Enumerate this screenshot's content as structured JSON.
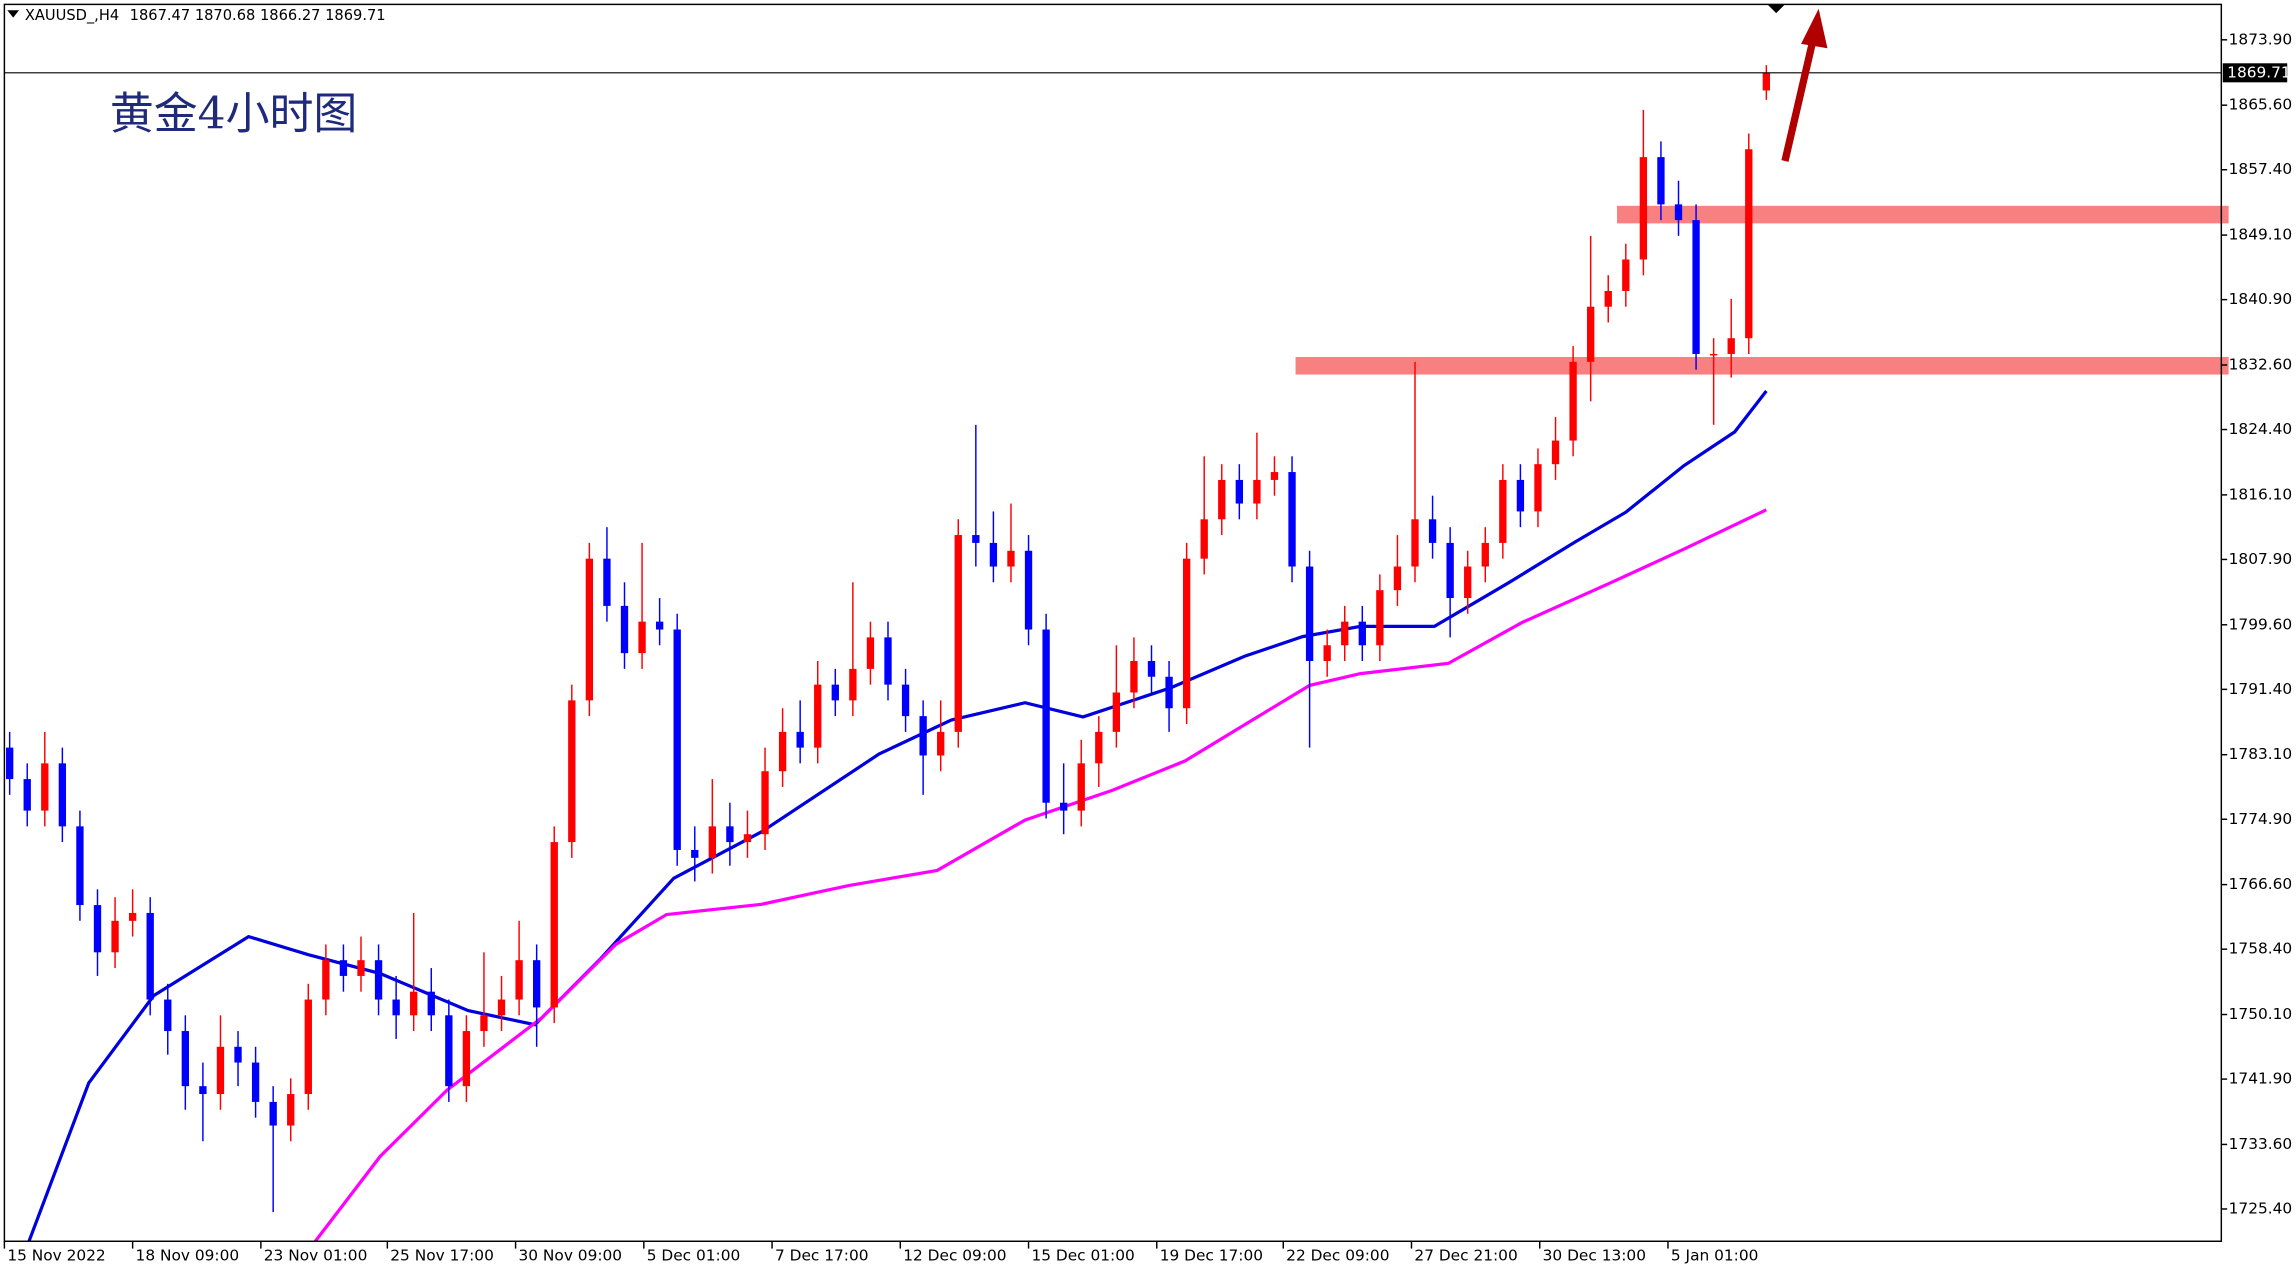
{
  "chart_data": {
    "type": "candlestick",
    "symbol": "XAUUSD_,H4",
    "title": "黄金4小时图",
    "up_color": "#ff0000",
    "down_color": "#0000ff",
    "open": [
      1784,
      1780,
      1776,
      1782,
      1774,
      1764,
      1758,
      1762,
      1763,
      1752,
      1748,
      1741,
      1740,
      1746,
      1744,
      1739,
      1736,
      1740,
      1752,
      1757,
      1755,
      1757,
      1752,
      1750,
      1753,
      1750,
      1741,
      1748,
      1750,
      1752,
      1757,
      1751,
      1772,
      1790,
      1808,
      1802,
      1796,
      1800,
      1799,
      1771,
      1770,
      1774,
      1772,
      1773,
      1781,
      1786,
      1784,
      1792,
      1790,
      1794,
      1798,
      1792,
      1788,
      1783,
      1786,
      1811,
      1810,
      1807,
      1809,
      1799,
      1777,
      1776,
      1782,
      1786,
      1791,
      1795,
      1793,
      1789,
      1808,
      1813,
      1818,
      1815,
      1818,
      1819,
      1807,
      1795,
      1797,
      1800,
      1797,
      1804,
      1807,
      1813,
      1810,
      1803,
      1807,
      1810,
      1818,
      1814,
      1820,
      1823,
      1833,
      1840,
      1842,
      1846,
      1859,
      1853,
      1851,
      1834,
      1834,
      1836,
      1867.47
    ],
    "high": [
      1786,
      1782,
      1786,
      1784,
      1776,
      1766,
      1765,
      1766,
      1765,
      1754,
      1750,
      1744,
      1750,
      1748,
      1746,
      1741,
      1742,
      1754,
      1759,
      1759,
      1760,
      1759,
      1755,
      1763,
      1756,
      1752,
      1750,
      1758,
      1755,
      1762,
      1759,
      1774,
      1792,
      1810,
      1812,
      1805,
      1810,
      1803,
      1801,
      1774,
      1780,
      1777,
      1776,
      1784,
      1789,
      1790,
      1795,
      1794,
      1805,
      1800,
      1800,
      1794,
      1790,
      1790,
      1813,
      1825,
      1814,
      1815,
      1811,
      1801,
      1782,
      1785,
      1788,
      1797,
      1798,
      1797,
      1795,
      1810,
      1821,
      1820,
      1820,
      1824,
      1821,
      1821,
      1809,
      1799,
      1802,
      1802,
      1806,
      1811,
      1833,
      1816,
      1812,
      1809,
      1812,
      1820,
      1820,
      1822,
      1826,
      1835,
      1849,
      1844,
      1848,
      1865,
      1861,
      1856,
      1853,
      1836,
      1841,
      1862,
      1870.68
    ],
    "low": [
      1778,
      1774,
      1774,
      1772,
      1762,
      1755,
      1756,
      1760,
      1750,
      1745,
      1738,
      1734,
      1738,
      1741,
      1737,
      1725,
      1734,
      1738,
      1750,
      1753,
      1753,
      1750,
      1747,
      1748,
      1748,
      1739,
      1739,
      1746,
      1748,
      1750,
      1746,
      1749,
      1770,
      1788,
      1800,
      1794,
      1794,
      1797,
      1769,
      1767,
      1768,
      1769,
      1770,
      1771,
      1779,
      1782,
      1782,
      1788,
      1788,
      1792,
      1790,
      1786,
      1778,
      1781,
      1784,
      1807,
      1805,
      1805,
      1797,
      1775,
      1773,
      1774,
      1779,
      1784,
      1789,
      1791,
      1786,
      1787,
      1806,
      1811,
      1813,
      1813,
      1816,
      1805,
      1784,
      1793,
      1795,
      1795,
      1795,
      1802,
      1805,
      1808,
      1798,
      1801,
      1805,
      1808,
      1812,
      1812,
      1818,
      1821,
      1828,
      1838,
      1840,
      1844,
      1851,
      1849,
      1832,
      1825,
      1831,
      1834,
      1866.27
    ],
    "close": [
      1780,
      1776,
      1782,
      1774,
      1764,
      1758,
      1762,
      1763,
      1752,
      1748,
      1741,
      1740,
      1746,
      1744,
      1739,
      1736,
      1740,
      1752,
      1757,
      1755,
      1757,
      1752,
      1750,
      1753,
      1750,
      1741,
      1748,
      1750,
      1752,
      1757,
      1751,
      1772,
      1790,
      1808,
      1802,
      1796,
      1800,
      1799,
      1771,
      1770,
      1774,
      1772,
      1773,
      1781,
      1786,
      1784,
      1792,
      1790,
      1794,
      1798,
      1792,
      1788,
      1783,
      1786,
      1811,
      1810,
      1807,
      1809,
      1799,
      1777,
      1776,
      1782,
      1786,
      1791,
      1795,
      1793,
      1789,
      1808,
      1813,
      1818,
      1815,
      1818,
      1819,
      1807,
      1795,
      1797,
      1800,
      1797,
      1804,
      1807,
      1813,
      1810,
      1803,
      1807,
      1810,
      1818,
      1814,
      1820,
      1823,
      1833,
      1840,
      1842,
      1846,
      1859,
      1853,
      1851,
      1834,
      1834,
      1836,
      1860,
      1869.71
    ],
    "series": [
      {
        "color": "#0000dd",
        "x": [
          1.1,
          4.5,
          8.2,
          13.6,
          17,
          21.1,
          26.1,
          29.9,
          33.6,
          37.8,
          42.8,
          49.5,
          53.6,
          57.8,
          61.1,
          66.1,
          70.3,
          73.6,
          76.9,
          81.1,
          85.3,
          89.1,
          92,
          95.3,
          98.2,
          100
        ],
        "values": [
          1721.3,
          1741.4,
          1752.5,
          1760,
          1757.7,
          1755.3,
          1750.6,
          1748.8,
          1757.1,
          1767.4,
          1773.3,
          1783.2,
          1787.5,
          1789.7,
          1787.9,
          1791.6,
          1795.6,
          1798.1,
          1799.4,
          1799.4,
          1804.9,
          1810.1,
          1813.9,
          1819.8,
          1824.1,
          1829.3
        ]
      },
      {
        "color": "#ff00ff",
        "x": [
          17.4,
          21.1,
          24.9,
          30.3,
          34.5,
          37.4,
          42.8,
          47.8,
          52.8,
          57.8,
          62.8,
          66.9,
          70.3,
          74,
          76.9,
          81.9,
          86.1,
          91.1,
          95.3,
          100
        ],
        "values": [
          1721.3,
          1732.1,
          1740.5,
          1749.7,
          1759,
          1762.8,
          1764.1,
          1766.5,
          1768.4,
          1774.8,
          1778.6,
          1782.3,
          1786.9,
          1791.9,
          1793.4,
          1794.7,
          1799.9,
          1804.9,
          1809.2,
          1814.2
        ]
      }
    ],
    "zones": [
      {
        "level": 1851.7,
        "start": 91.5,
        "color": "#f88080"
      },
      {
        "level": 1832.5,
        "start": 73.2,
        "color": "#f88080"
      }
    ],
    "xlim": [
      -0.3,
      125.9
    ],
    "ylim": [
      1721.3,
      1878.4
    ],
    "xticks": [
      {
        "value": -0.3,
        "label": "15 Nov 2022"
      },
      {
        "value": 7,
        "label": "18 Nov 09:00"
      },
      {
        "value": 14.3,
        "label": "23 Nov 01:00"
      },
      {
        "value": 21.5,
        "label": "25 Nov 17:00"
      },
      {
        "value": 28.8,
        "label": "30 Nov 09:00"
      },
      {
        "value": 36.1,
        "label": "5 Dec 01:00"
      },
      {
        "value": 43.4,
        "label": "7 Dec 17:00"
      },
      {
        "value": 50.7,
        "label": "12 Dec 09:00"
      },
      {
        "value": 58,
        "label": "15 Dec 01:00"
      },
      {
        "value": 65.3,
        "label": "19 Dec 17:00"
      },
      {
        "value": 72.5,
        "label": "22 Dec 09:00"
      },
      {
        "value": 79.8,
        "label": "27 Dec 21:00"
      },
      {
        "value": 87.1,
        "label": "30 Dec 13:00"
      },
      {
        "value": 94.4,
        "label": "5 Jan 01:00"
      }
    ],
    "yticks": [
      {
        "value": 1873.9,
        "label": "1873.90"
      },
      {
        "value": 1865.6,
        "label": "1865.60"
      },
      {
        "value": 1857.4,
        "label": "1857.40"
      },
      {
        "value": 1849.1,
        "label": "1849.10"
      },
      {
        "value": 1840.9,
        "label": "1840.90"
      },
      {
        "value": 1832.6,
        "label": "1832.60"
      },
      {
        "value": 1824.4,
        "label": "1824.40"
      },
      {
        "value": 1816.1,
        "label": "1816.10"
      },
      {
        "value": 1807.9,
        "label": "1807.90"
      },
      {
        "value": 1799.6,
        "label": "1799.60"
      },
      {
        "value": 1791.4,
        "label": "1791.40"
      },
      {
        "value": 1783.1,
        "label": "1783.10"
      },
      {
        "value": 1774.9,
        "label": "1774.90"
      },
      {
        "value": 1766.6,
        "label": "1766.60"
      },
      {
        "value": 1758.4,
        "label": "1758.40"
      },
      {
        "value": 1750.1,
        "label": "1750.10"
      },
      {
        "value": 1741.9,
        "label": "1741.90"
      },
      {
        "value": 1733.6,
        "label": "1733.60"
      },
      {
        "value": 1725.4,
        "label": "1725.40"
      }
    ]
  }
}
